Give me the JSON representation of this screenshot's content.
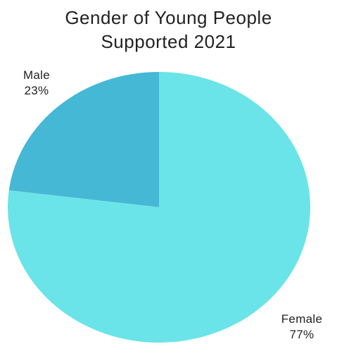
{
  "chart_data": {
    "type": "pie",
    "title_lines": [
      "Gender of Young People",
      "Supported 2021"
    ],
    "slices": [
      {
        "label": "Male",
        "value": 23,
        "display": "23%",
        "color": "#45b8d6"
      },
      {
        "label": "Female",
        "value": 77,
        "display": "77%",
        "color": "#6ae4e8"
      }
    ],
    "start_angle_deg": 0,
    "direction": "counterclockwise",
    "legend": "none",
    "data_labels": "outside"
  }
}
